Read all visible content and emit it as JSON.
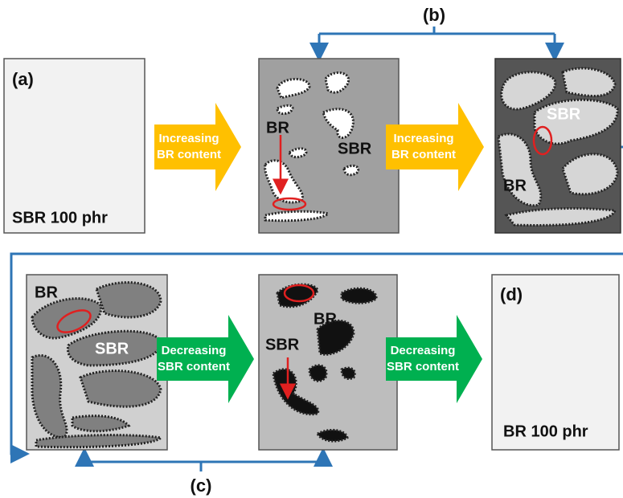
{
  "labels": {
    "b": "(b)",
    "c": "(c)"
  },
  "panels": [
    {
      "label": "(a)",
      "caption": "SBR 100 phr"
    },
    {
      "texts": [
        "BR",
        "SBR"
      ]
    },
    {
      "texts": [
        "SBR",
        "BR"
      ]
    },
    {
      "texts": [
        "BR",
        "SBR"
      ]
    },
    {
      "texts": [
        "BR",
        "SBR"
      ]
    },
    {
      "label": "(d)",
      "caption": "BR 100 phr"
    }
  ],
  "arrows": [
    {
      "lines": [
        "Increasing",
        "BR content"
      ]
    },
    {
      "lines": [
        "Increasing",
        "BR content"
      ]
    },
    {
      "lines": [
        "Decreasing",
        "SBR content"
      ]
    },
    {
      "lines": [
        "Decreasing",
        "SBR content"
      ]
    }
  ]
}
